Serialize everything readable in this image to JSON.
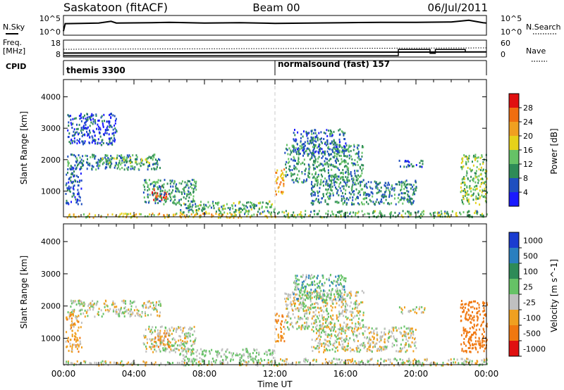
{
  "header": {
    "station": "Saskatoon (fitACF)",
    "beam": "Beam 00",
    "date": "06/Jul/2011"
  },
  "nsky_panel": {
    "left_label": "N.Sky",
    "right_label": "N.Search",
    "ticks_left": [
      "10^5",
      "10^0"
    ],
    "ticks_right": [
      "10^5",
      "10^0"
    ]
  },
  "freq_panel": {
    "left_label_top": "Freq.",
    "left_label_bottom": "[MHz]",
    "right_label": "Nave",
    "ticks_left": [
      "18",
      "8"
    ],
    "ticks_right": [
      "60",
      "0"
    ],
    "nave_steps": [
      {
        "t0": 0.0,
        "t1": 19.0,
        "v": 3
      },
      {
        "t0": 19.0,
        "t1": 20.8,
        "v": 28
      },
      {
        "t0": 20.8,
        "t1": 21.1,
        "v": 12
      },
      {
        "t0": 21.1,
        "t1": 22.8,
        "v": 28
      },
      {
        "t0": 22.8,
        "t1": 24.0,
        "v": 18
      }
    ]
  },
  "cpid": {
    "label": "CPID",
    "segments": [
      {
        "t_start": 0.0,
        "text": "themis 3300"
      },
      {
        "t_start": 12.0,
        "text": "normalsound (fast) 157"
      }
    ]
  },
  "x_axis": {
    "label": "Time UT",
    "ticks": [
      "00:00",
      "04:00",
      "08:00",
      "12:00",
      "16:00",
      "20:00",
      "00:00"
    ]
  },
  "power_panel": {
    "ylabel": "Slant Range [km]",
    "yticks": [
      "1000",
      "2000",
      "3000",
      "4000"
    ],
    "cbar_label": "Power [dB]",
    "cbar_ticks": [
      "4",
      "8",
      "12",
      "16",
      "20",
      "24",
      "28"
    ],
    "cbar_colors": [
      "#1a1aff",
      "#1f4fbf",
      "#2e8b57",
      "#66c266",
      "#e6d21a",
      "#f0a020",
      "#f06e10",
      "#e01010"
    ]
  },
  "velocity_panel": {
    "ylabel": "Slant Range [km]",
    "yticks": [
      "1000",
      "2000",
      "3000",
      "4000"
    ],
    "cbar_label": "Velocity [m s^-1]",
    "cbar_ticks": [
      "1000",
      "500",
      "100",
      "25",
      "-25",
      "-100",
      "-500",
      "-1000"
    ],
    "cbar_colors": [
      "#1a3cd0",
      "#2a7fbf",
      "#2e8b57",
      "#66c266",
      "#c0c0c0",
      "#f0a020",
      "#f07810",
      "#e01010"
    ]
  },
  "chart_data": [
    {
      "type": "line",
      "title": "N.Sky",
      "x": [
        0,
        0.1,
        1,
        2,
        2.7,
        3,
        5,
        6,
        8,
        10,
        12,
        14,
        16,
        18,
        20,
        22,
        23,
        23.8,
        24
      ],
      "series": [
        {
          "name": "N.Sky",
          "values": [
            1,
            3.2,
            3.3,
            3.4,
            3.9,
            3.4,
            3.5,
            3.6,
            3.4,
            3.5,
            3.3,
            3.4,
            3.5,
            3.6,
            3.6,
            3.7,
            4.2,
            3.5,
            3.4
          ]
        }
      ],
      "ylim": [
        0,
        5
      ]
    },
    {
      "type": "line",
      "title": "Freq.",
      "x": [
        0,
        2,
        6,
        12,
        18,
        24
      ],
      "series": [
        {
          "name": "Freq.",
          "values": [
            10.2,
            10.3,
            10.4,
            10.6,
            10.8,
            11.0
          ]
        }
      ],
      "ylim": [
        8,
        18
      ]
    },
    {
      "type": "heatmap",
      "title": "Power [dB]",
      "xlabel": "Time UT",
      "ylabel": "Slant Range [km]",
      "xlim": [
        0,
        24
      ],
      "ylim": [
        180,
        4550
      ],
      "zlim": [
        0,
        30
      ],
      "blobs": [
        {
          "t0": 0.2,
          "t1": 5.5,
          "r0": 1700,
          "r1": 2200,
          "z": 9
        },
        {
          "t0": 2.0,
          "t1": 5.0,
          "r0": 1900,
          "r1": 2100,
          "z": 14
        },
        {
          "t0": 0.1,
          "t1": 1.0,
          "r0": 600,
          "r1": 1800,
          "z": 6
        },
        {
          "t0": 0.2,
          "t1": 3.0,
          "r0": 2500,
          "r1": 3500,
          "z": 5
        },
        {
          "t0": 5.0,
          "t1": 6.0,
          "r0": 750,
          "r1": 1200,
          "z": 27
        },
        {
          "t0": 4.5,
          "t1": 7.5,
          "r0": 600,
          "r1": 1400,
          "z": 10
        },
        {
          "t0": 6.5,
          "t1": 12.0,
          "r0": 300,
          "r1": 700,
          "z": 11
        },
        {
          "t0": 0.0,
          "t1": 12.0,
          "r0": 180,
          "r1": 320,
          "z": 18
        },
        {
          "t0": 12.0,
          "t1": 12.5,
          "r0": 900,
          "r1": 1800,
          "z": 20
        },
        {
          "t0": 12.5,
          "t1": 17.0,
          "r0": 1300,
          "r1": 2500,
          "z": 10
        },
        {
          "t0": 13.0,
          "t1": 16.0,
          "r0": 2200,
          "r1": 3000,
          "z": 7
        },
        {
          "t0": 14.0,
          "t1": 20.0,
          "r0": 600,
          "r1": 1400,
          "z": 9
        },
        {
          "t0": 12.0,
          "t1": 24.0,
          "r0": 180,
          "r1": 400,
          "z": 12
        },
        {
          "t0": 22.5,
          "t1": 24.0,
          "r0": 600,
          "r1": 2200,
          "z": 13
        },
        {
          "t0": 19.0,
          "t1": 20.5,
          "r0": 1800,
          "r1": 2000,
          "z": 6
        }
      ]
    },
    {
      "type": "heatmap",
      "title": "Velocity",
      "xlabel": "Time UT",
      "ylabel": "Slant Range [km]",
      "xlim": [
        0,
        24
      ],
      "ylim": [
        180,
        4550
      ],
      "zlim": [
        -1000,
        1000
      ],
      "blobs": [
        {
          "t0": 0.2,
          "t1": 5.5,
          "r0": 1700,
          "r1": 2200,
          "z": 0
        },
        {
          "t0": 0.1,
          "t1": 1.0,
          "r0": 600,
          "r1": 1800,
          "z": -60
        },
        {
          "t0": 5.0,
          "t1": 6.0,
          "r0": 750,
          "r1": 1200,
          "z": -150
        },
        {
          "t0": 4.5,
          "t1": 7.5,
          "r0": 600,
          "r1": 1400,
          "z": 0
        },
        {
          "t0": 6.5,
          "t1": 12.0,
          "r0": 300,
          "r1": 700,
          "z": 40
        },
        {
          "t0": 0.0,
          "t1": 12.0,
          "r0": 180,
          "r1": 320,
          "z": 0
        },
        {
          "t0": 12.0,
          "t1": 12.5,
          "r0": 900,
          "r1": 1800,
          "z": -120
        },
        {
          "t0": 12.5,
          "t1": 17.0,
          "r0": 1300,
          "r1": 2500,
          "z": 0
        },
        {
          "t0": 13.0,
          "t1": 16.0,
          "r0": 2200,
          "r1": 3000,
          "z": 60
        },
        {
          "t0": 14.0,
          "t1": 20.0,
          "r0": 600,
          "r1": 1400,
          "z": 0
        },
        {
          "t0": 12.0,
          "t1": 24.0,
          "r0": 180,
          "r1": 400,
          "z": 0
        },
        {
          "t0": 22.5,
          "t1": 24.0,
          "r0": 600,
          "r1": 2200,
          "z": -400
        },
        {
          "t0": 19.0,
          "t1": 20.5,
          "r0": 1800,
          "r1": 2000,
          "z": 0
        }
      ]
    }
  ]
}
